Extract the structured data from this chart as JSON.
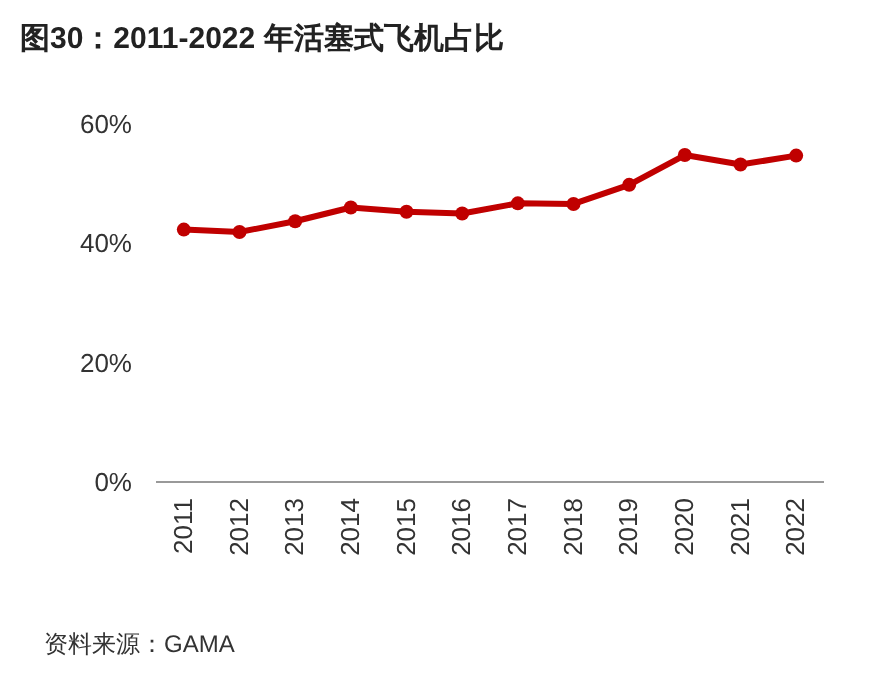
{
  "chart_data": {
    "type": "line",
    "title": "图30：2011-2022 年活塞式飞机占比",
    "categories": [
      "2011",
      "2012",
      "2013",
      "2014",
      "2015",
      "2016",
      "2017",
      "2018",
      "2019",
      "2020",
      "2021",
      "2022"
    ],
    "series": [
      {
        "color": "#c00000",
        "values": [
          42.3,
          41.9,
          43.7,
          46.0,
          45.3,
          45.0,
          46.7,
          46.6,
          49.8,
          54.8,
          53.2,
          54.7
        ]
      }
    ],
    "ylim": [
      0,
      60
    ],
    "yticks": [
      {
        "value": 0,
        "label": "0%"
      },
      {
        "value": 20,
        "label": "20%"
      },
      {
        "value": 40,
        "label": "40%"
      },
      {
        "value": 60,
        "label": "60%"
      }
    ],
    "marker": "circle",
    "line_style": "solid",
    "annotations": [
      "资料来源：GAMA"
    ]
  }
}
